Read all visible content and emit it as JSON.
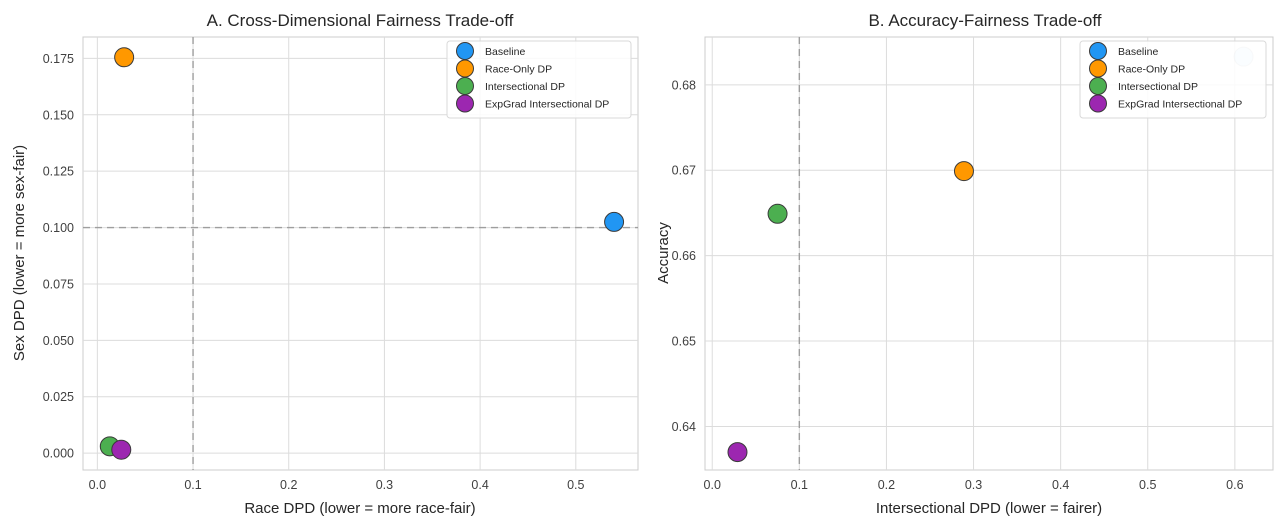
{
  "chart_data": [
    {
      "type": "scatter",
      "title": "A. Cross-Dimensional Fairness Trade-off",
      "xlabel": "Race DPD (lower = more race-fair)",
      "ylabel": "Sex DPD (lower = more sex-fair)",
      "xlim": [
        -0.015,
        0.565
      ],
      "ylim": [
        -0.0075,
        0.1845
      ],
      "xticks": [
        0.0,
        0.1,
        0.2,
        0.3,
        0.4,
        0.5
      ],
      "xtick_labels": [
        "0.0",
        "0.1",
        "0.2",
        "0.3",
        "0.4",
        "0.5"
      ],
      "yticks": [
        0.0,
        0.025,
        0.05,
        0.075,
        0.1,
        0.125,
        0.15,
        0.175
      ],
      "ytick_labels": [
        "0.000",
        "0.025",
        "0.050",
        "0.075",
        "0.100",
        "0.125",
        "0.150",
        "0.175"
      ],
      "grid": true,
      "legend_position": "top-right",
      "ref_vline": 0.1,
      "ref_hline": 0.1,
      "series": [
        {
          "name": "Baseline",
          "color": "#2196f3",
          "x": 0.54,
          "y": 0.1025
        },
        {
          "name": "Race-Only DP",
          "color": "#ff9800",
          "x": 0.028,
          "y": 0.1755
        },
        {
          "name": "Intersectional DP",
          "color": "#4caf50",
          "x": 0.013,
          "y": 0.003
        },
        {
          "name": "ExpGrad Intersectional DP",
          "color": "#9c27b0",
          "x": 0.025,
          "y": 0.0015
        }
      ]
    },
    {
      "type": "scatter",
      "title": "B. Accuracy-Fairness Trade-off",
      "xlabel": "Intersectional DPD (lower = fairer)",
      "ylabel": "Accuracy",
      "xlim": [
        -0.0083,
        0.6438
      ],
      "ylim": [
        0.6349,
        0.6856
      ],
      "xticks": [
        0.0,
        0.1,
        0.2,
        0.3,
        0.4,
        0.5,
        0.6
      ],
      "xtick_labels": [
        "0.0",
        "0.1",
        "0.2",
        "0.3",
        "0.4",
        "0.5",
        "0.6"
      ],
      "yticks": [
        0.64,
        0.65,
        0.66,
        0.67,
        0.68
      ],
      "ytick_labels": [
        "0.64",
        "0.65",
        "0.66",
        "0.67",
        "0.68"
      ],
      "grid": true,
      "legend_position": "top-right",
      "ref_vline": 0.1,
      "series": [
        {
          "name": "Baseline",
          "color": "#2196f3",
          "x": 0.61,
          "y": 0.6833
        },
        {
          "name": "Race-Only DP",
          "color": "#ff9800",
          "x": 0.289,
          "y": 0.6699
        },
        {
          "name": "Intersectional DP",
          "color": "#4caf50",
          "x": 0.075,
          "y": 0.6649
        },
        {
          "name": "ExpGrad Intersectional DP",
          "color": "#9c27b0",
          "x": 0.029,
          "y": 0.637
        }
      ]
    }
  ]
}
